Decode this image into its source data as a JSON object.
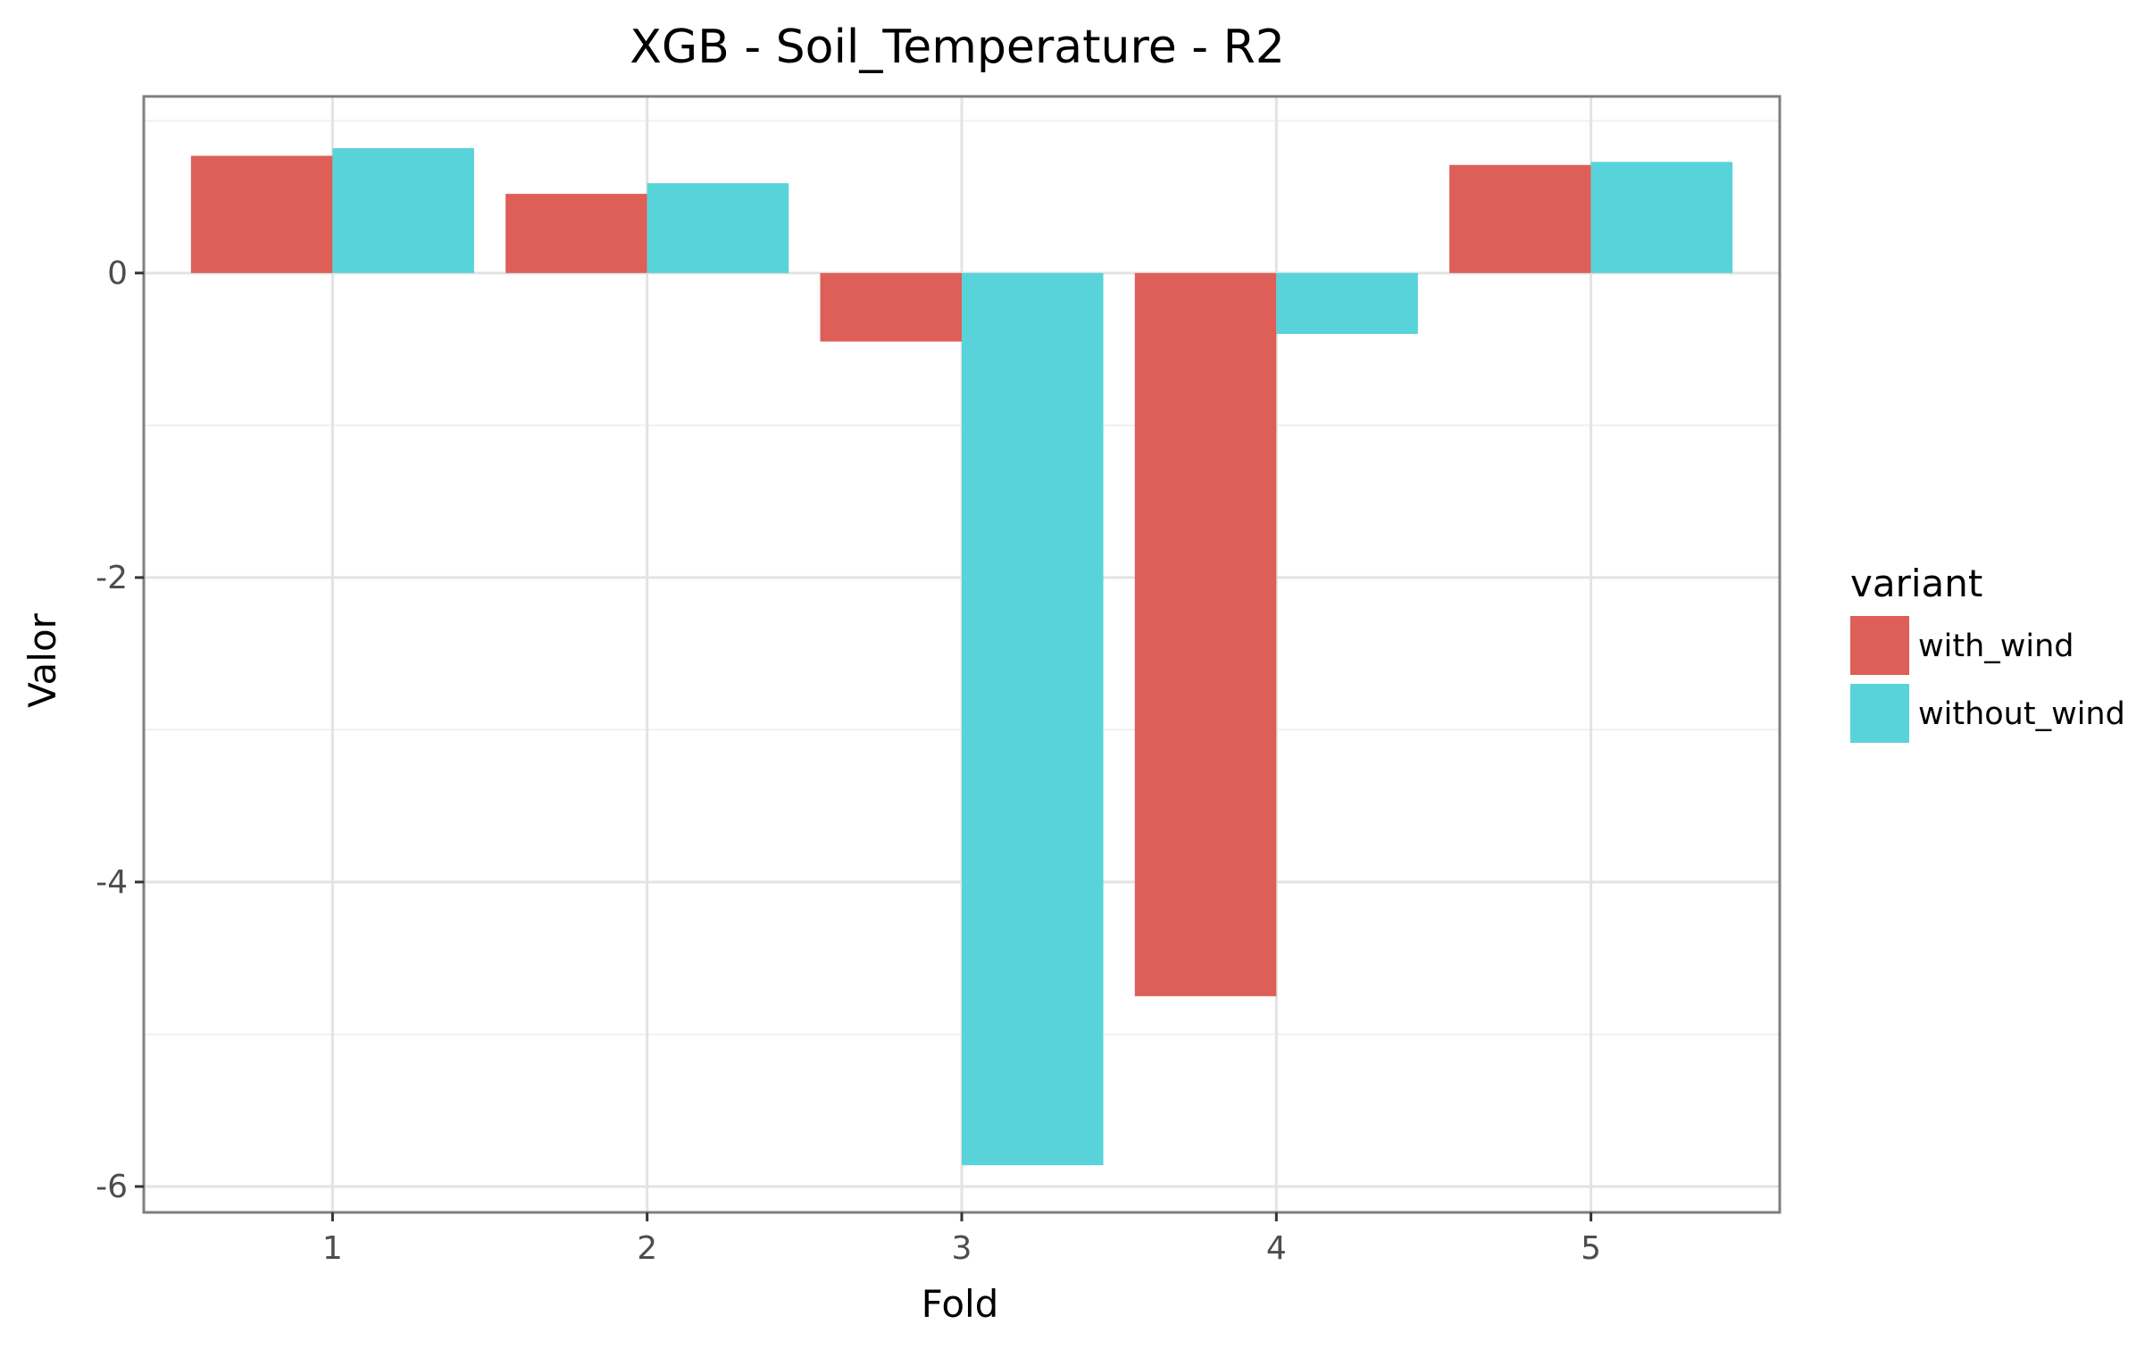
{
  "chart_data": {
    "type": "bar",
    "title": "XGB - Soil_Temperature - R2",
    "xlabel": "Fold",
    "ylabel": "Valor",
    "categories": [
      "1",
      "2",
      "3",
      "4",
      "5"
    ],
    "series": [
      {
        "name": "with_wind",
        "color": "#de5f57",
        "values": [
          0.77,
          0.52,
          -0.45,
          -4.75,
          0.71
        ]
      },
      {
        "name": "without_wind",
        "color": "#59d3da",
        "values": [
          0.82,
          0.59,
          -5.86,
          -0.4,
          0.73
        ]
      }
    ],
    "ylim": [
      -6.17,
      1.16
    ],
    "yticks": [
      0,
      -2,
      -4,
      -6
    ],
    "ytick_labels": [
      "0",
      "-2",
      "-4",
      "-6"
    ],
    "grid": true,
    "legend": {
      "title": "variant",
      "position": "right"
    }
  }
}
